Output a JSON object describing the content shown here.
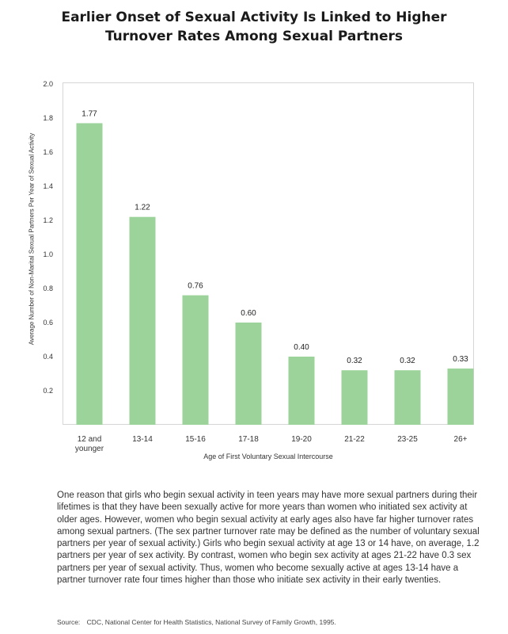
{
  "title": {
    "line1": "Earlier Onset of Sexual Activity Is Linked to Higher",
    "line2": "Turnover Rates Among Sexual Partners"
  },
  "colors": {
    "bar": "#9cd39a",
    "frame": "#d6d6d6"
  },
  "chart_data": {
    "type": "bar",
    "categories": [
      "12 and younger",
      "13-14",
      "15-16",
      "17-18",
      "19-20",
      "21-22",
      "23-25",
      "26+"
    ],
    "category_lines": [
      [
        "12 and",
        "younger"
      ],
      [
        "13-14"
      ],
      [
        "15-16"
      ],
      [
        "17-18"
      ],
      [
        "19-20"
      ],
      [
        "21-22"
      ],
      [
        "23-25"
      ],
      [
        "26+"
      ]
    ],
    "values": [
      1.77,
      1.22,
      0.76,
      0.6,
      0.4,
      0.32,
      0.32,
      0.33
    ],
    "data_labels": [
      "1.77",
      "1.22",
      "0.76",
      "0.60",
      "0.40",
      "0.32",
      "0.32",
      "0.33"
    ],
    "ylim": [
      0,
      2.0
    ],
    "yticks": [
      0.2,
      0.4,
      0.6,
      0.8,
      1.0,
      1.2,
      1.4,
      1.6,
      1.8,
      2.0
    ],
    "ytick_labels": [
      "0.2",
      "0.4",
      "0.6",
      "0.8",
      "1.0",
      "1.2",
      "1.4",
      "1.6",
      "1.8",
      "2.0"
    ],
    "xlabel": "Age of First Voluntary Sexual Intercourse",
    "ylabel": "Average Number of Non-Marital Sexual Partners Per Year of Sexual Activity",
    "grid": false
  },
  "body_text": "One reason that girls who begin sexual activity in teen years may have more sexual partners during their lifetimes is that they have been sexually active for more years than women who initiated sex activity at older ages.  However, women who begin sexual activity at early ages also have far higher turnover rates among sexual partners.  (The sex partner turnover rate may be defined as the number of voluntary sexual partners per year of sexual activity.)  Girls who begin sexual activity at age 13 or 14 have, on average, 1.2 partners per year of sex activity. By contrast, women who begin sex activity at ages 21-22 have 0.3 sex partners per year of sexual activity. Thus, women who become sexually active at ages 13-14 have a partner turnover rate four times higher than those who initiate sex activity in their early twenties.",
  "source": {
    "label": "Source:",
    "text": "CDC, National Center for Health Statistics, National Survey of Family Growth, 1995."
  }
}
